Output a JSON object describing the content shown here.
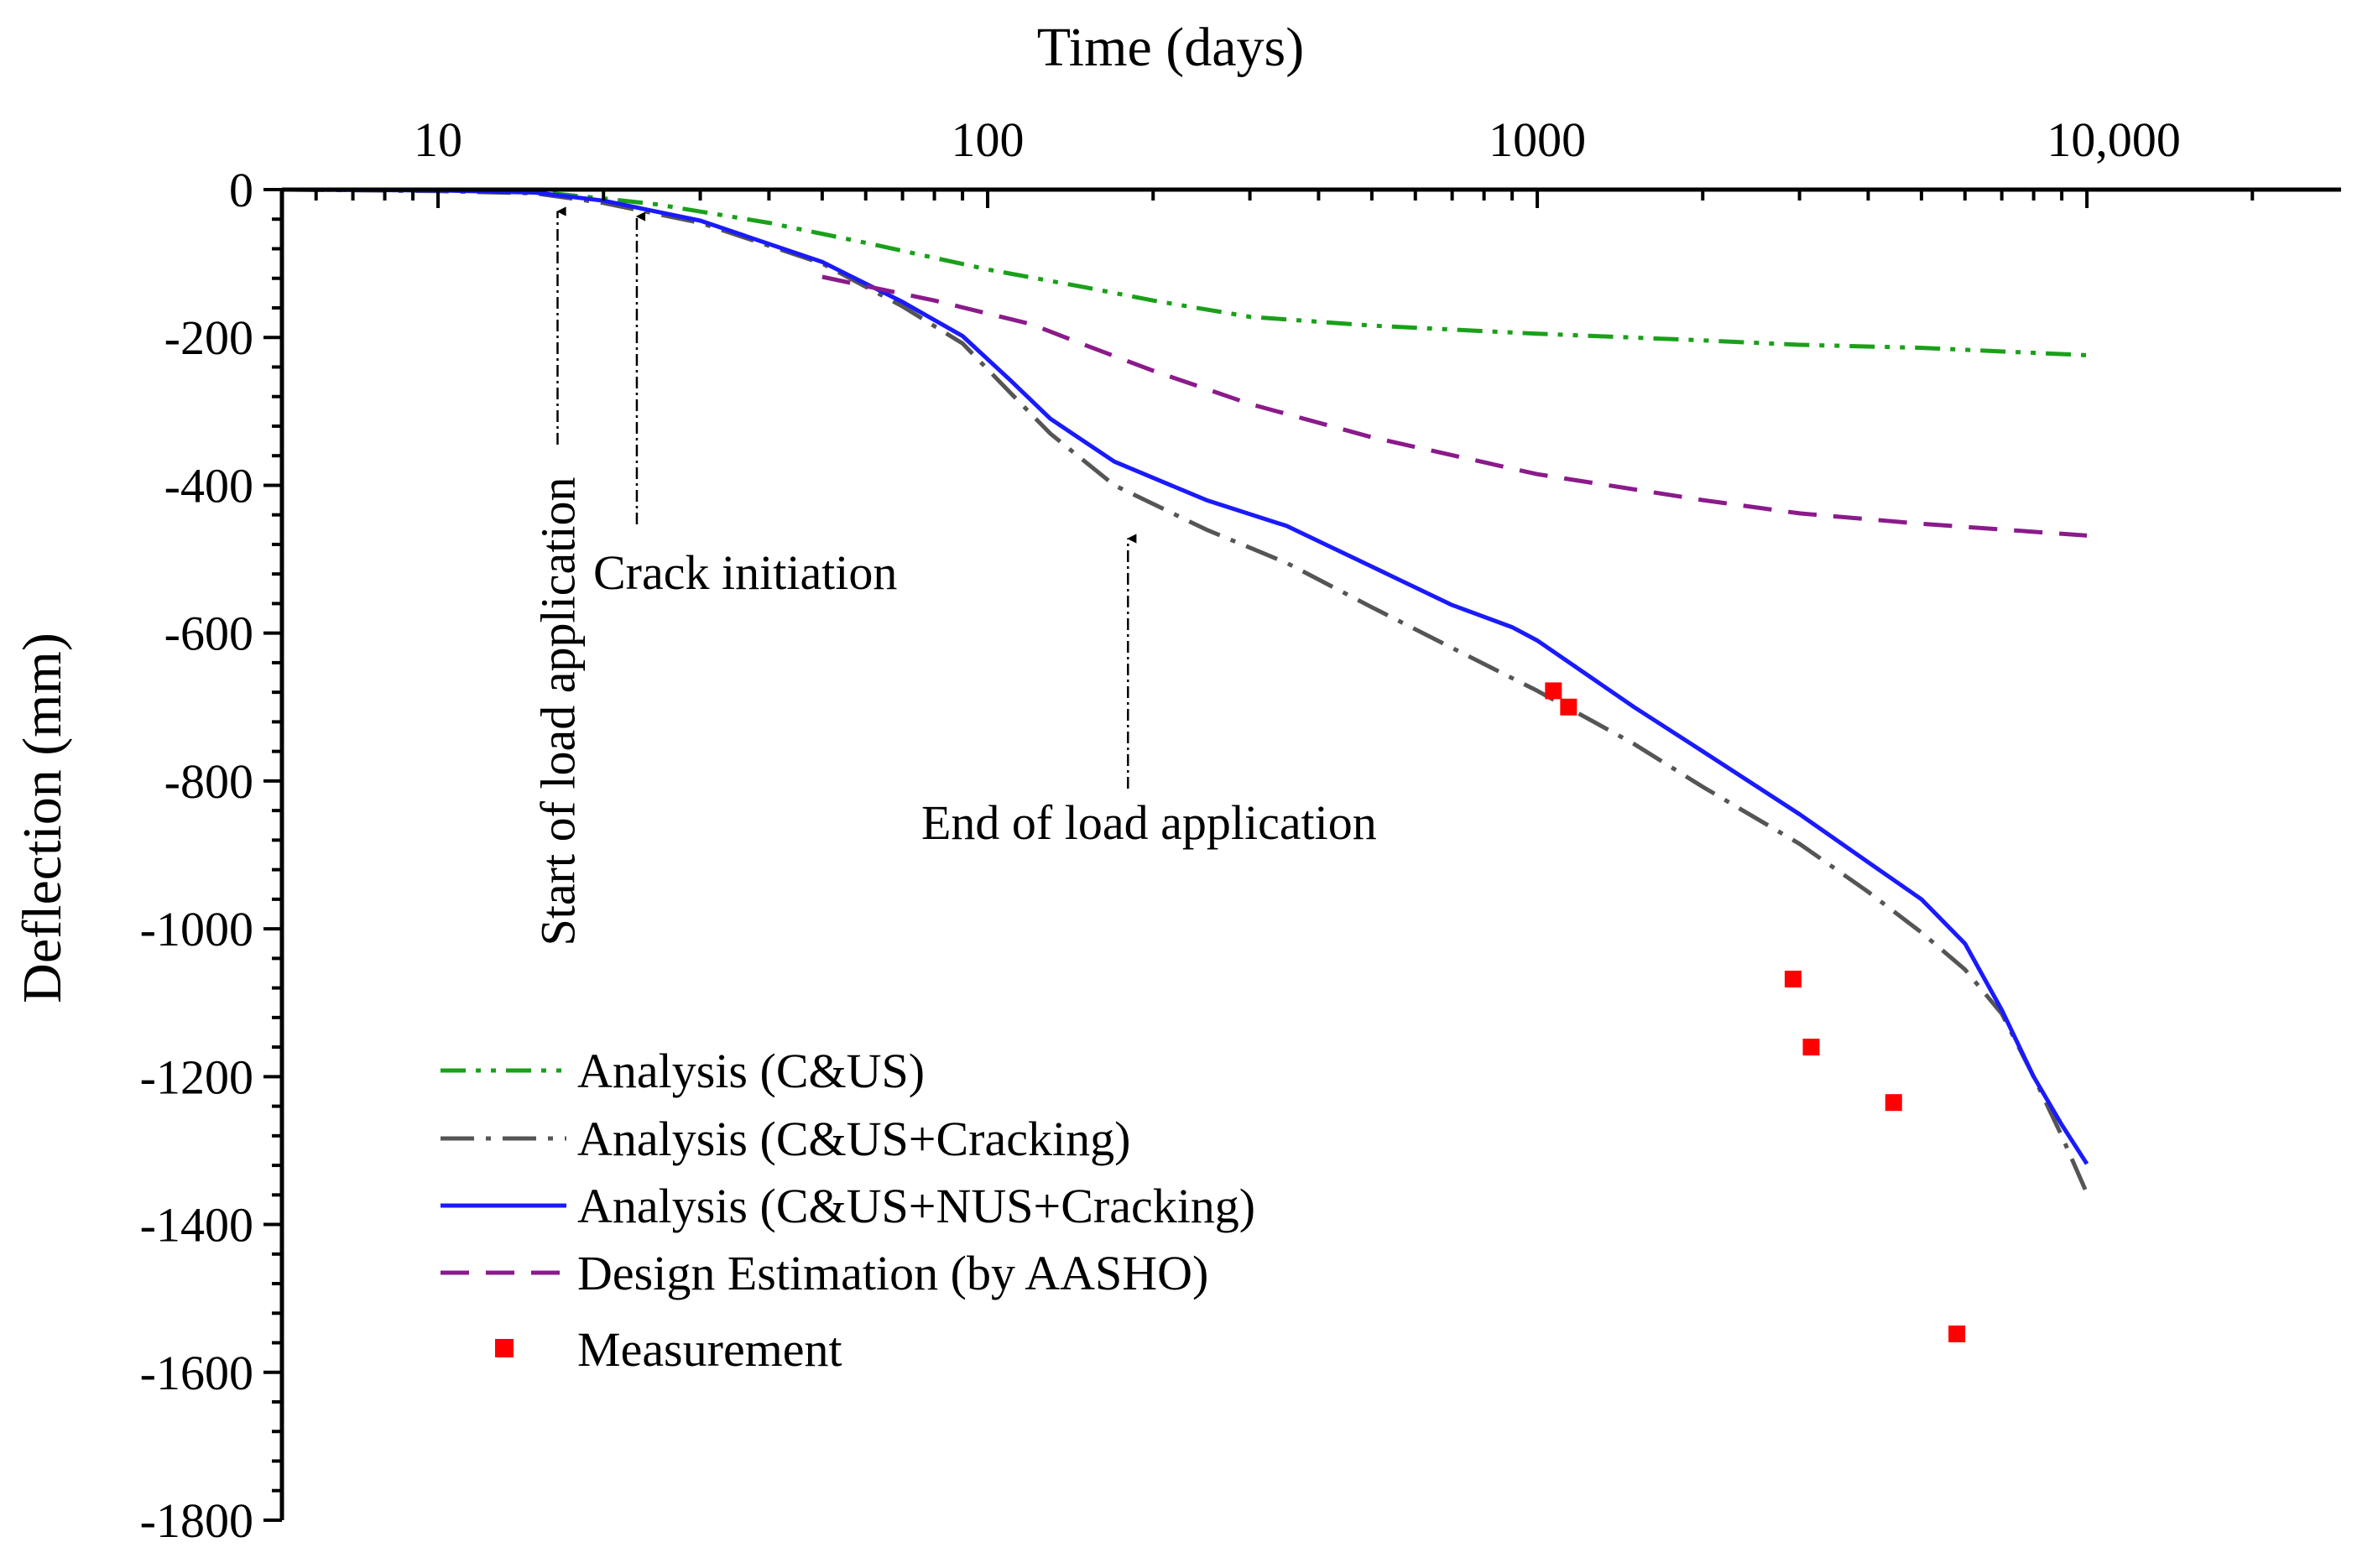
{
  "chart_data": {
    "type": "line",
    "title": "",
    "xlabel": "Time (days)",
    "ylabel": "Deflection (mm)",
    "x_scale": "log",
    "xlim": [
      5.2,
      29000
    ],
    "ylim": [
      -1800,
      0
    ],
    "x_ticks": [
      {
        "value": 10,
        "label": "10"
      },
      {
        "value": 100,
        "label": "100"
      },
      {
        "value": 1000,
        "label": "1000"
      },
      {
        "value": 10000,
        "label": "10,000"
      }
    ],
    "y_ticks": [
      {
        "value": 0,
        "label": "0"
      },
      {
        "value": -200,
        "label": "-200"
      },
      {
        "value": -400,
        "label": "-400"
      },
      {
        "value": -600,
        "label": "-600"
      },
      {
        "value": -800,
        "label": "-800"
      },
      {
        "value": -1000,
        "label": "-1000"
      },
      {
        "value": -1200,
        "label": "-1200"
      },
      {
        "value": -1400,
        "label": "-1400"
      },
      {
        "value": -1600,
        "label": "-1600"
      },
      {
        "value": -1800,
        "label": "-1800"
      }
    ],
    "legend_position": "bottom-left",
    "series": [
      {
        "name": "Analysis (C&US)",
        "color": "#1aa01a",
        "dash": "dash-dot-dot",
        "points": [
          [
            5.4,
            0
          ],
          [
            10,
            -1
          ],
          [
            15,
            -3
          ],
          [
            20,
            -12
          ],
          [
            25,
            -20
          ],
          [
            40,
            -45
          ],
          [
            60,
            -72
          ],
          [
            100,
            -108
          ],
          [
            150,
            -132
          ],
          [
            200,
            -150
          ],
          [
            300,
            -172
          ],
          [
            500,
            -184
          ],
          [
            1000,
            -195
          ],
          [
            2000,
            -204
          ],
          [
            3000,
            -210
          ],
          [
            5000,
            -214
          ],
          [
            10000,
            -224
          ]
        ]
      },
      {
        "name": "Analysis (C&US+Cracking)",
        "color": "#555555",
        "dash": "dash-dot",
        "points": [
          [
            5.4,
            0
          ],
          [
            10,
            -2
          ],
          [
            15,
            -5
          ],
          [
            20,
            -18
          ],
          [
            30,
            -45
          ],
          [
            50,
            -100
          ],
          [
            70,
            -158
          ],
          [
            90,
            -208
          ],
          [
            110,
            -275
          ],
          [
            130,
            -330
          ],
          [
            170,
            -400
          ],
          [
            250,
            -460
          ],
          [
            350,
            -505
          ],
          [
            500,
            -565
          ],
          [
            700,
            -620
          ],
          [
            1000,
            -678
          ],
          [
            1500,
            -750
          ],
          [
            2000,
            -808
          ],
          [
            3000,
            -885
          ],
          [
            4000,
            -950
          ],
          [
            5000,
            -1005
          ],
          [
            6000,
            -1055
          ],
          [
            7000,
            -1115
          ],
          [
            8000,
            -1200
          ],
          [
            9000,
            -1280
          ],
          [
            10000,
            -1358
          ]
        ]
      },
      {
        "name": "Analysis (C&US+NUS+Cracking)",
        "color": "#1a1aff",
        "dash": "solid",
        "points": [
          [
            5.4,
            0
          ],
          [
            10,
            -1
          ],
          [
            15,
            -4
          ],
          [
            20,
            -15
          ],
          [
            30,
            -42
          ],
          [
            50,
            -98
          ],
          [
            70,
            -152
          ],
          [
            90,
            -198
          ],
          [
            110,
            -258
          ],
          [
            130,
            -310
          ],
          [
            170,
            -368
          ],
          [
            250,
            -420
          ],
          [
            350,
            -455
          ],
          [
            500,
            -510
          ],
          [
            700,
            -562
          ],
          [
            900,
            -592
          ],
          [
            1000,
            -610
          ],
          [
            1500,
            -700
          ],
          [
            2000,
            -760
          ],
          [
            3000,
            -845
          ],
          [
            4000,
            -910
          ],
          [
            5000,
            -960
          ],
          [
            6000,
            -1020
          ],
          [
            7000,
            -1110
          ],
          [
            8000,
            -1200
          ],
          [
            9000,
            -1265
          ],
          [
            10000,
            -1318
          ]
        ]
      },
      {
        "name": "Design Estimation (by AASHO)",
        "color": "#8b1a8b",
        "dash": "dashed",
        "points": [
          [
            50,
            -118
          ],
          [
            80,
            -150
          ],
          [
            120,
            -182
          ],
          [
            150,
            -210
          ],
          [
            200,
            -245
          ],
          [
            300,
            -290
          ],
          [
            500,
            -335
          ],
          [
            1000,
            -385
          ],
          [
            2000,
            -420
          ],
          [
            3000,
            -438
          ],
          [
            5000,
            -452
          ],
          [
            10000,
            -468
          ]
        ]
      },
      {
        "name": "Measurement",
        "color": "#ff0000",
        "dash": "none",
        "points": [
          [
            1070,
            -678
          ],
          [
            1140,
            -700
          ],
          [
            2920,
            -1068
          ],
          [
            3150,
            -1160
          ],
          [
            4450,
            -1235
          ],
          [
            5800,
            -1548
          ]
        ]
      }
    ],
    "annotations": [
      {
        "label": "Start of load application",
        "x": 16.5,
        "y": 0
      },
      {
        "label": "Crack initiation",
        "x": 23,
        "y": 0
      },
      {
        "label": "End of load application",
        "x": 180,
        "y": -460
      }
    ]
  }
}
